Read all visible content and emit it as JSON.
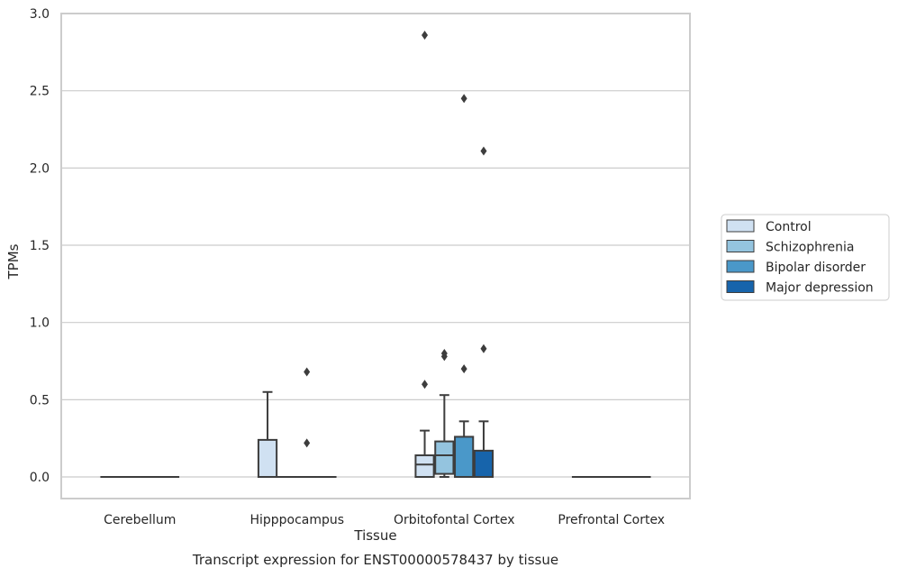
{
  "chart_data": {
    "type": "boxplot",
    "xlabel": "Tissue",
    "ylabel": "TPMs",
    "caption": "Transcript expression for ENST00000578437 by tissue",
    "ylim": [
      -0.14,
      3.0
    ],
    "yticks": [
      0.0,
      0.5,
      1.0,
      1.5,
      2.0,
      2.5,
      3.0
    ],
    "ytick_labels": [
      "0.0",
      "0.5",
      "1.0",
      "1.5",
      "2.0",
      "2.5",
      "3.0"
    ],
    "grid": "horizontal",
    "legend_position": "right",
    "categories": [
      "Cerebellum",
      "Hipppocampus",
      "Orbitofontal Cortex",
      "Prefrontal Cortex"
    ],
    "series": [
      {
        "name": "Control",
        "color": "#d0e1f2",
        "boxes": [
          {
            "category": "Cerebellum",
            "min": 0,
            "q1": 0,
            "median": 0,
            "q3": 0,
            "max": 0,
            "outliers": []
          },
          {
            "category": "Hipppocampus",
            "min": 0,
            "q1": 0,
            "median": 0,
            "q3": 0.24,
            "max": 0.55,
            "outliers": []
          },
          {
            "category": "Orbitofontal Cortex",
            "min": 0,
            "q1": 0,
            "median": 0.08,
            "q3": 0.14,
            "max": 0.3,
            "outliers": [
              0.6,
              2.86
            ]
          },
          {
            "category": "Prefrontal Cortex",
            "min": 0,
            "q1": 0,
            "median": 0,
            "q3": 0,
            "max": 0,
            "outliers": []
          }
        ]
      },
      {
        "name": "Schizophrenia",
        "color": "#94c4df",
        "boxes": [
          {
            "category": "Cerebellum",
            "min": 0,
            "q1": 0,
            "median": 0,
            "q3": 0,
            "max": 0,
            "outliers": []
          },
          {
            "category": "Hipppocampus",
            "min": 0,
            "q1": 0,
            "median": 0,
            "q3": 0,
            "max": 0,
            "outliers": []
          },
          {
            "category": "Orbitofontal Cortex",
            "min": 0,
            "q1": 0.02,
            "median": 0.14,
            "q3": 0.23,
            "max": 0.53,
            "outliers": [
              0.78,
              0.8
            ]
          },
          {
            "category": "Prefrontal Cortex",
            "min": 0,
            "q1": 0,
            "median": 0,
            "q3": 0,
            "max": 0,
            "outliers": []
          }
        ]
      },
      {
        "name": "Bipolar disorder",
        "color": "#4a98c9",
        "boxes": [
          {
            "category": "Cerebellum",
            "min": 0,
            "q1": 0,
            "median": 0,
            "q3": 0,
            "max": 0,
            "outliers": []
          },
          {
            "category": "Hipppocampus",
            "min": 0,
            "q1": 0,
            "median": 0,
            "q3": 0,
            "max": 0,
            "outliers": [
              0.22,
              0.68
            ]
          },
          {
            "category": "Orbitofontal Cortex",
            "min": 0,
            "q1": 0,
            "median": 0,
            "q3": 0.26,
            "max": 0.36,
            "outliers": [
              0.7,
              2.45
            ]
          },
          {
            "category": "Prefrontal Cortex",
            "min": 0,
            "q1": 0,
            "median": 0,
            "q3": 0,
            "max": 0,
            "outliers": []
          }
        ]
      },
      {
        "name": "Major depression",
        "color": "#1764ab",
        "boxes": [
          {
            "category": "Cerebellum",
            "min": 0,
            "q1": 0,
            "median": 0,
            "q3": 0,
            "max": 0,
            "outliers": []
          },
          {
            "category": "Hipppocampus",
            "min": 0,
            "q1": 0,
            "median": 0,
            "q3": 0,
            "max": 0,
            "outliers": []
          },
          {
            "category": "Orbitofontal Cortex",
            "min": 0,
            "q1": 0,
            "median": 0,
            "q3": 0.17,
            "max": 0.36,
            "outliers": [
              0.83,
              2.11
            ]
          },
          {
            "category": "Prefrontal Cortex",
            "min": 0,
            "q1": 0,
            "median": 0,
            "q3": 0,
            "max": 0,
            "outliers": []
          }
        ]
      }
    ]
  }
}
